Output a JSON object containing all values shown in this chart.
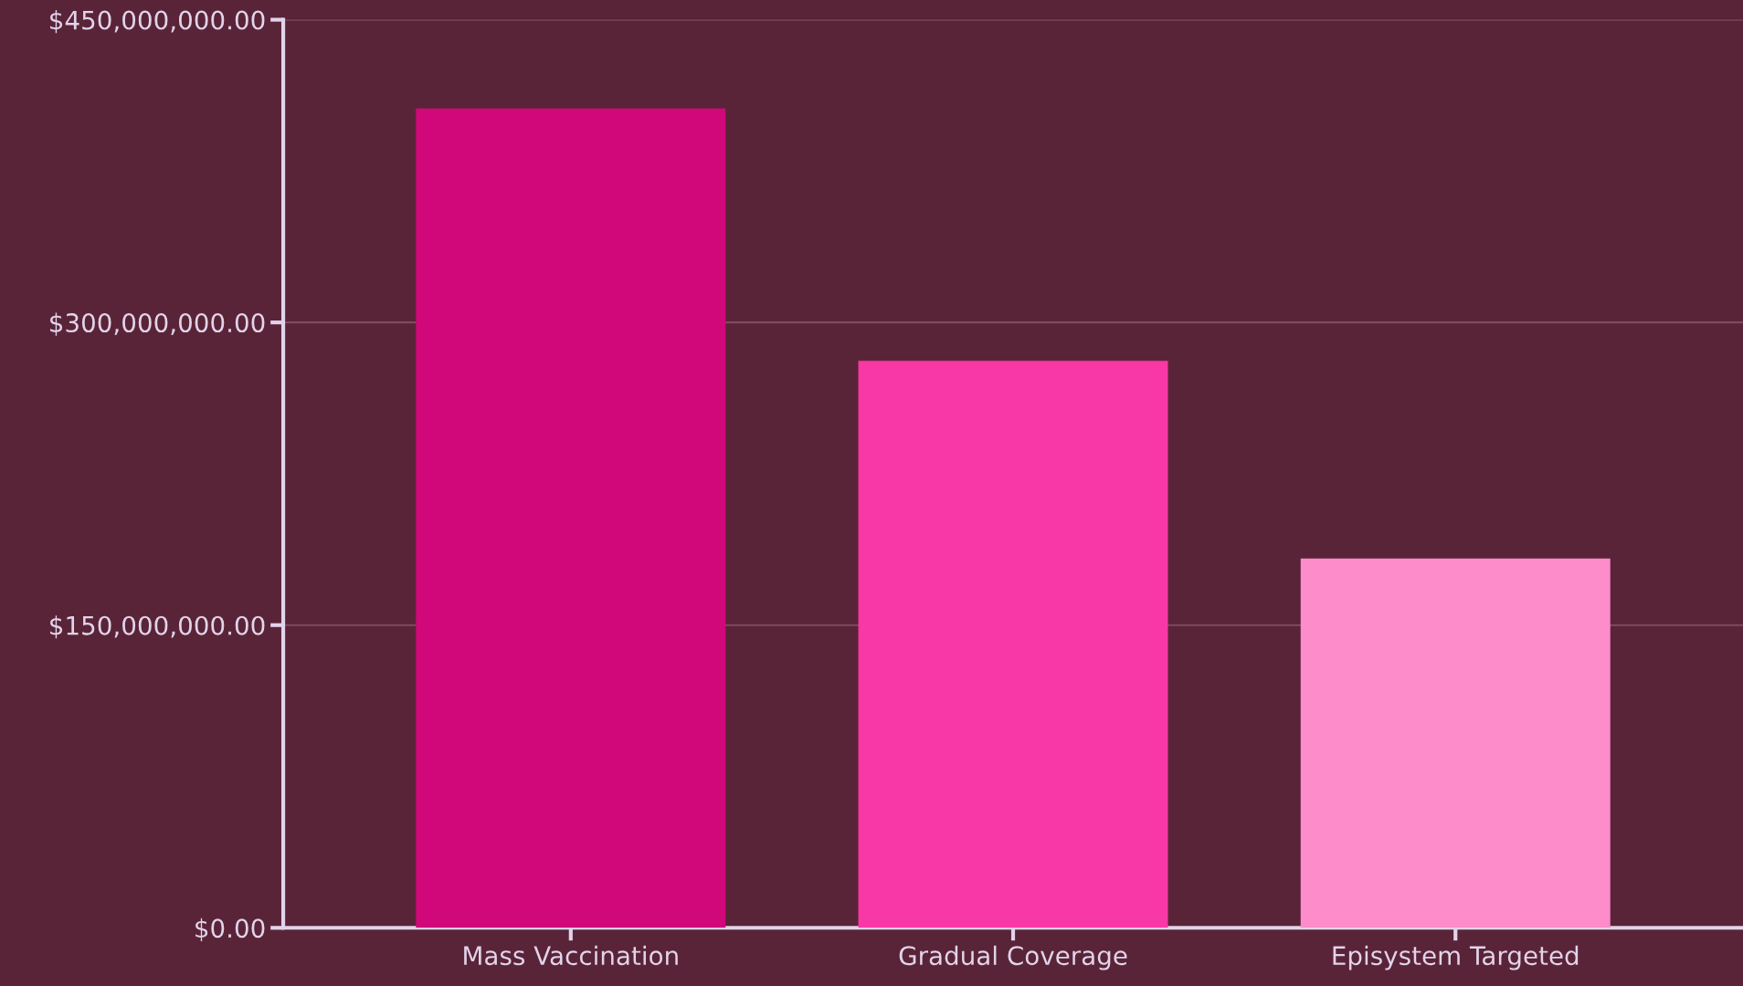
{
  "chart_data": {
    "type": "bar",
    "categories": [
      "Mass Vaccination",
      "Gradual Coverage",
      "Episystem Targeted"
    ],
    "values": [
      406000000,
      281000000,
      183000000
    ],
    "colors": [
      "#d0087a",
      "#f838a6",
      "#fc8cca"
    ],
    "ylim": [
      0,
      450000000
    ],
    "yticks": [
      {
        "value": 0,
        "label": "$0.00"
      },
      {
        "value": 150000000,
        "label": "$150,000,000.00"
      },
      {
        "value": 300000000,
        "label": "$300,000,000.00"
      },
      {
        "value": 450000000,
        "label": "$450,000,000.00"
      }
    ],
    "grid": "y"
  }
}
